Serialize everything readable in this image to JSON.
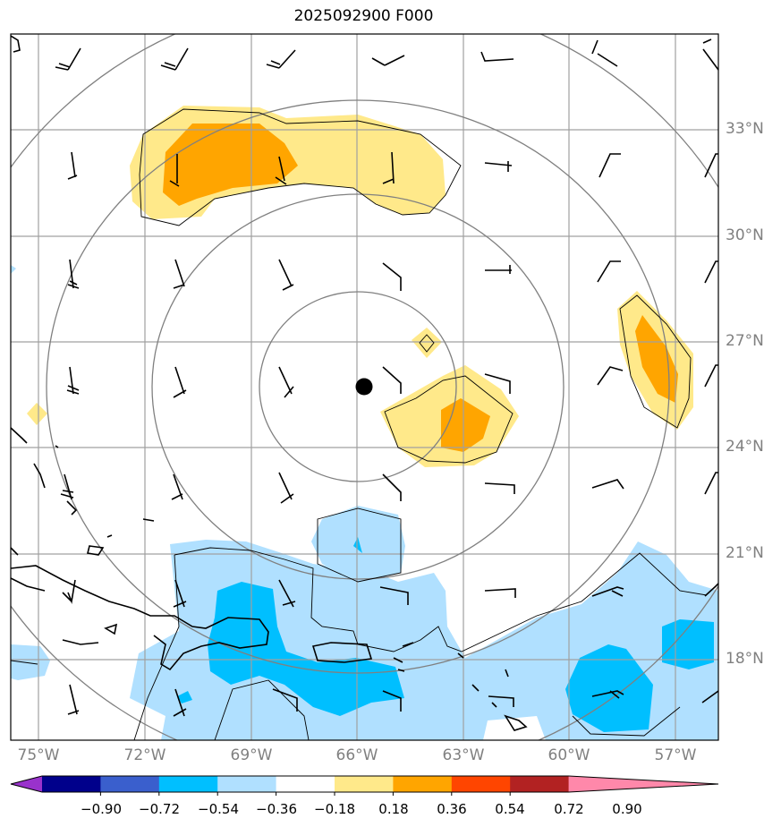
{
  "title": "2025092900 F000",
  "lat_labels": [
    "33°N",
    "30°N",
    "27°N",
    "24°N",
    "21°N",
    "18°N"
  ],
  "lon_labels": [
    "75°W",
    "72°W",
    "69°W",
    "66°W",
    "63°W",
    "60°W",
    "57°W"
  ],
  "colorbar": {
    "ticks": [
      "−0.90",
      "−0.72",
      "−0.54",
      "−0.36",
      "−0.18",
      "0.18",
      "0.36",
      "0.54",
      "0.72",
      "0.90"
    ],
    "colors": [
      "#9932CC",
      "#00008B",
      "#3A5FCD",
      "#00BFFF",
      "#B0E0FF",
      "#FFFFFF",
      "#FFE98A",
      "#FFA500",
      "#FF4500",
      "#B22222",
      "#FF88AA"
    ],
    "extend": "both"
  },
  "colors": {
    "light_positive": "#FFE98A",
    "positive": "#FFA500",
    "light_negative": "#B0E0FF",
    "negative": "#00BFFF",
    "range_rings": "#808080",
    "grid": "#A0A0A0"
  },
  "storm_center": {
    "lat": 25.7,
    "lon": -65.9
  }
}
